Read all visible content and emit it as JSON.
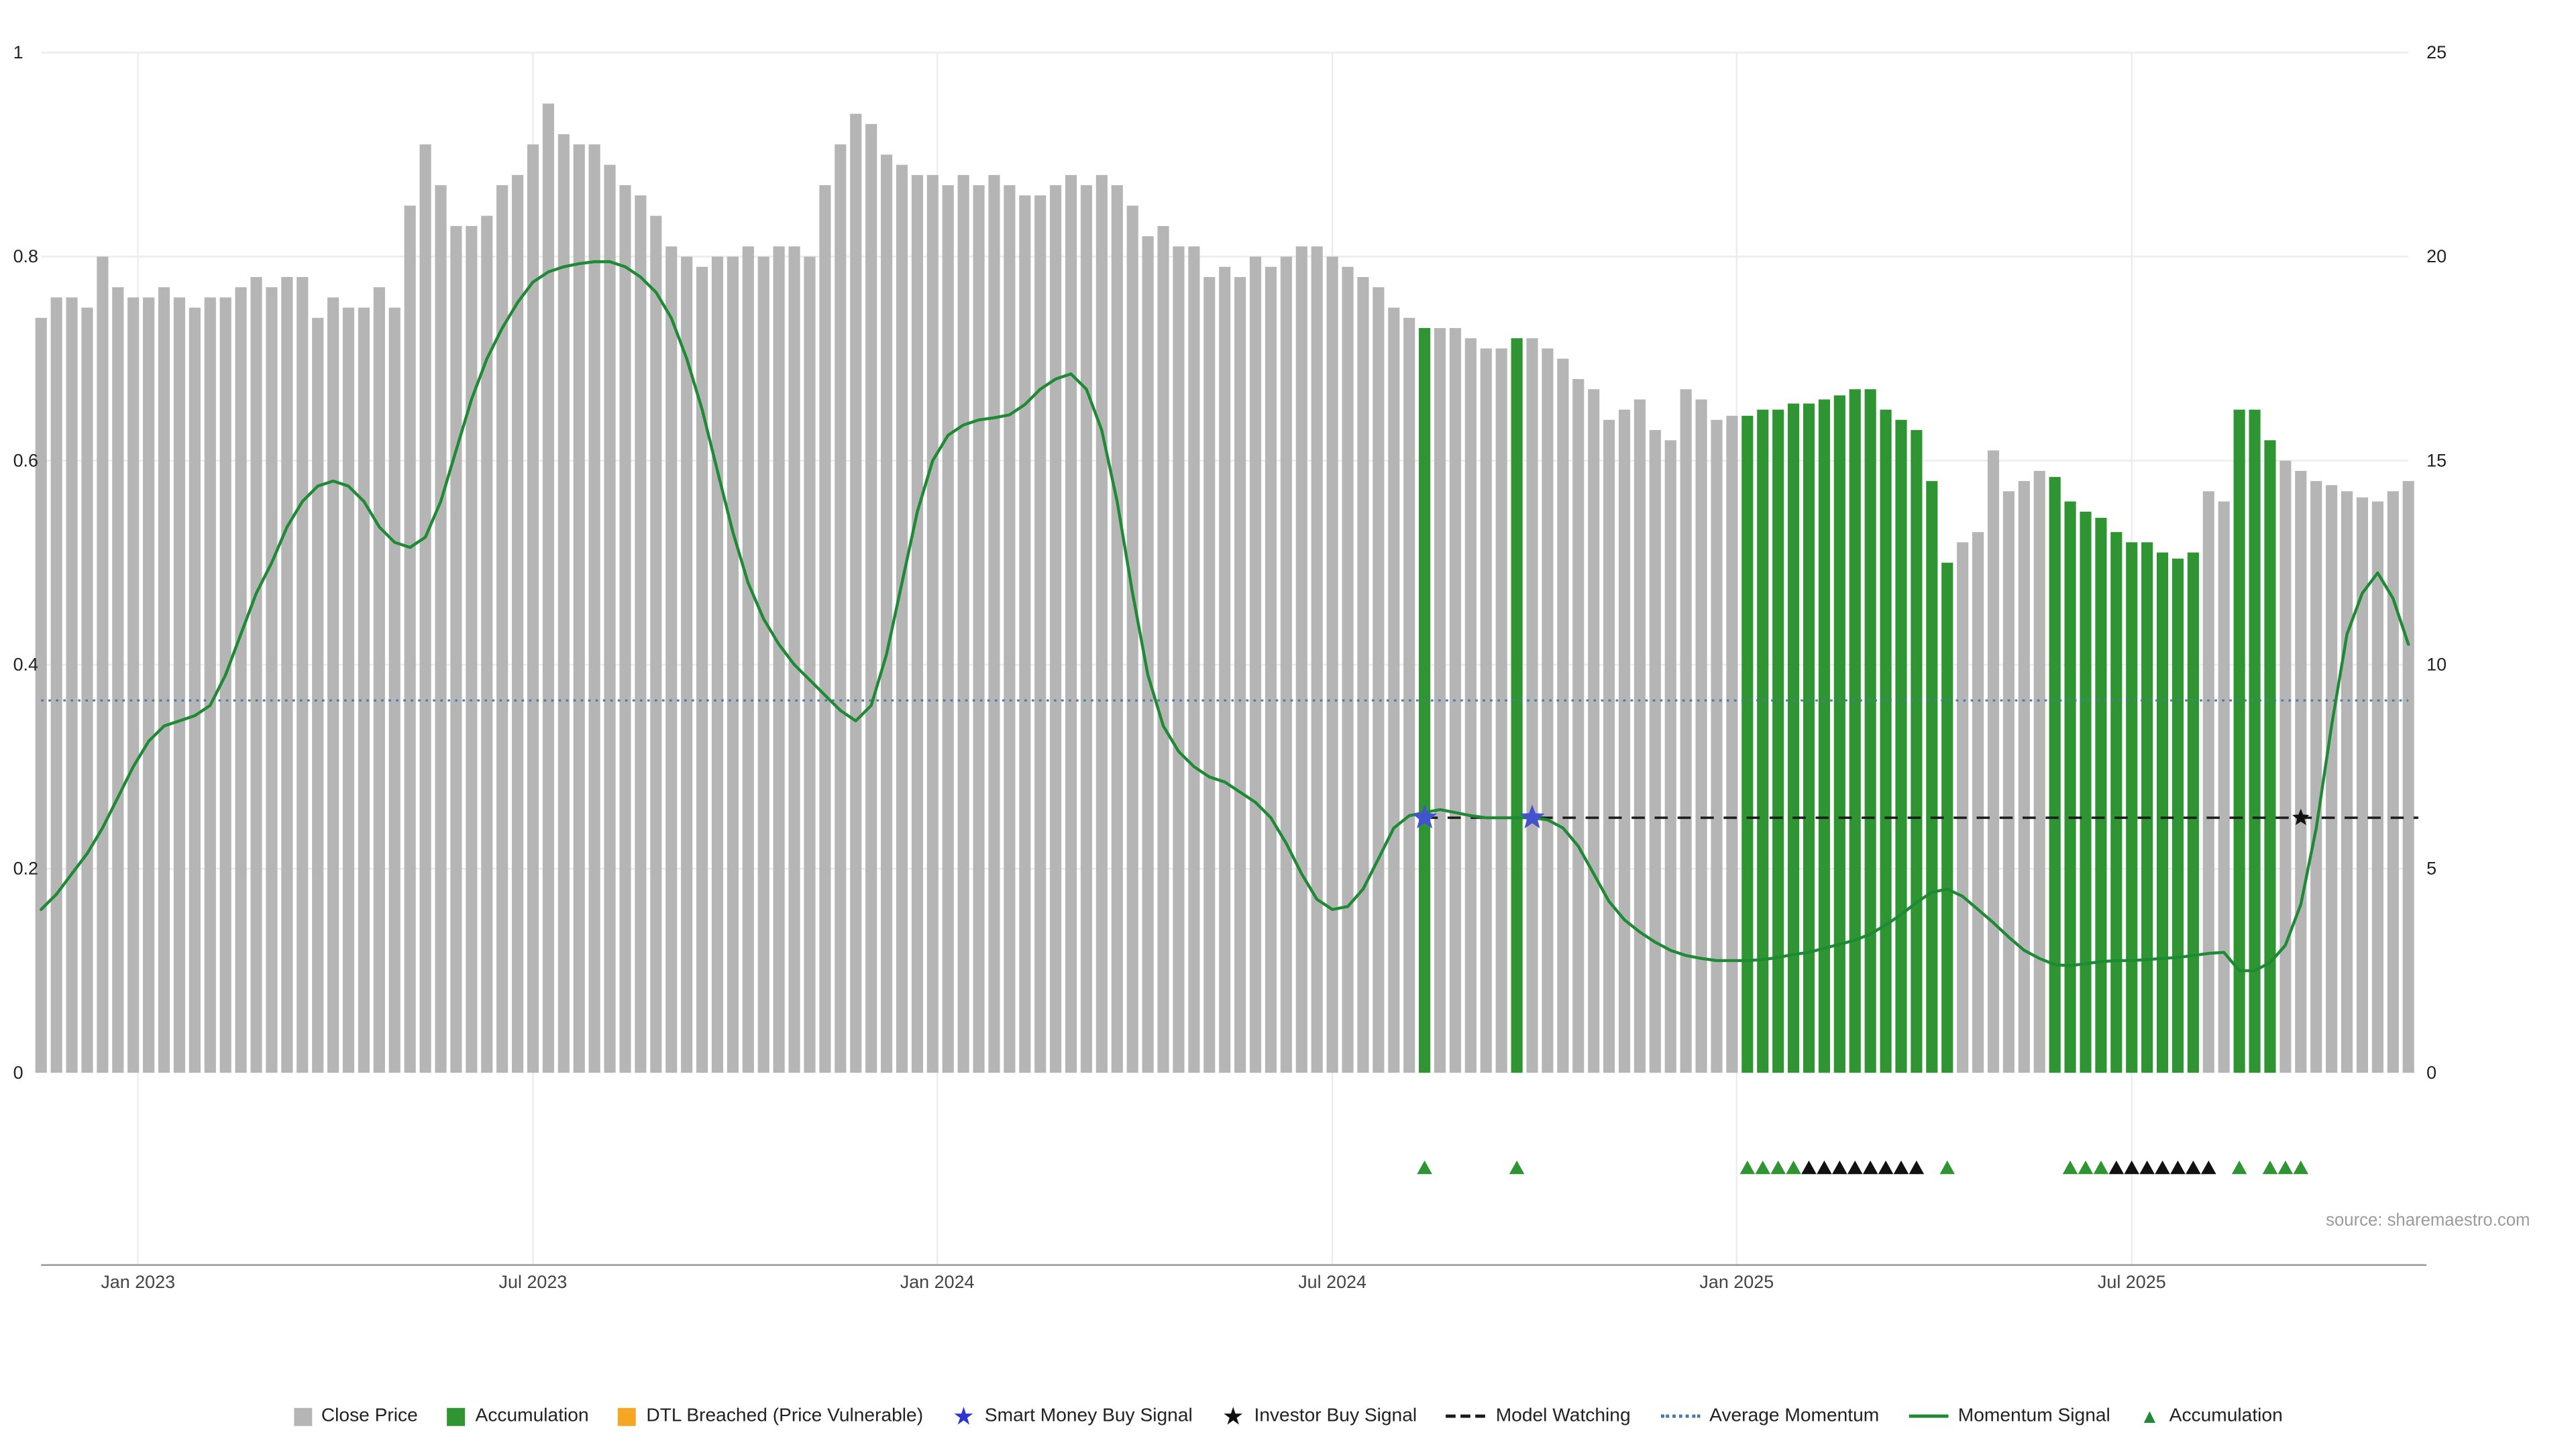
{
  "source_note": "source: sharemaestro.com",
  "colors": {
    "close_bar": "#b5b5b5",
    "accumulation_bar": "#2e9532",
    "dtl_breached": "#f5a623",
    "momentum_line": "#1e8a34",
    "average_momentum_line": "#4878a8",
    "model_watching_line": "#1a1a1a",
    "smart_money_star": "#4353d0",
    "investor_star": "#111111",
    "grid": "#ececec",
    "axis_line": "#999999"
  },
  "axes": {
    "left_ticks": [
      0,
      0.2,
      0.4,
      0.6,
      0.8,
      1
    ],
    "right_ticks": [
      0,
      5,
      10,
      15,
      20,
      25
    ],
    "x_ticks": [
      {
        "label": "Jan 2023",
        "week": 7.3
      },
      {
        "label": "Jul 2023",
        "week": 33.0
      },
      {
        "label": "Jan 2024",
        "week": 59.3
      },
      {
        "label": "Jul 2024",
        "week": 85.0
      },
      {
        "label": "Jan 2025",
        "week": 111.3
      },
      {
        "label": "Jul 2025",
        "week": 137.0
      }
    ]
  },
  "chart_data": {
    "type": "bar",
    "frequency": "weekly",
    "x_range": [
      "Nov 2022",
      "Nov 2025"
    ],
    "price_axis": "right",
    "price_axis_range": [
      0,
      25
    ],
    "momentum_axis": "left",
    "momentum_axis_range": [
      0,
      1
    ],
    "close": [
      18.5,
      19.0,
      19.0,
      18.75,
      20.0,
      19.25,
      19.0,
      19.0,
      19.25,
      19.0,
      18.75,
      19.0,
      19.0,
      19.25,
      19.5,
      19.25,
      19.5,
      19.5,
      18.5,
      19.0,
      18.75,
      18.75,
      19.25,
      18.75,
      21.25,
      22.75,
      21.75,
      20.75,
      20.75,
      21.0,
      21.75,
      22.0,
      22.75,
      23.75,
      23.0,
      22.75,
      22.75,
      22.25,
      21.75,
      21.5,
      21.0,
      20.25,
      20.0,
      19.75,
      20.0,
      20.0,
      20.25,
      20.0,
      20.25,
      20.25,
      20.0,
      21.75,
      22.75,
      23.5,
      23.25,
      22.5,
      22.25,
      22.0,
      22.0,
      21.75,
      22.0,
      21.75,
      22.0,
      21.75,
      21.5,
      21.5,
      21.75,
      22.0,
      21.75,
      22.0,
      21.75,
      21.25,
      20.5,
      20.75,
      20.25,
      20.25,
      19.5,
      19.75,
      19.5,
      20.0,
      19.75,
      20.0,
      20.25,
      20.25,
      20.0,
      19.75,
      19.5,
      19.25,
      18.75,
      18.5,
      18.25,
      18.25,
      18.25,
      18.0,
      17.75,
      17.75,
      18.0,
      18.0,
      17.75,
      17.5,
      17.0,
      16.75,
      16.0,
      16.25,
      16.5,
      15.75,
      15.5,
      16.75,
      16.5,
      16.0,
      16.1,
      16.1,
      16.25,
      16.25,
      16.4,
      16.4,
      16.5,
      16.6,
      16.75,
      16.75,
      16.25,
      16.0,
      15.75,
      14.5,
      12.5,
      13.0,
      13.25,
      15.25,
      14.25,
      14.5,
      14.75,
      14.6,
      14.0,
      13.75,
      13.6,
      13.25,
      13.0,
      13.0,
      12.75,
      12.6,
      12.75,
      14.25,
      14.0,
      16.25,
      16.25,
      15.5,
      15.0,
      14.75,
      14.5,
      14.4,
      14.25,
      14.1,
      14.0,
      14.25,
      14.5
    ],
    "momentum": [
      0.16,
      0.175,
      0.195,
      0.215,
      0.24,
      0.27,
      0.3,
      0.325,
      0.34,
      0.345,
      0.35,
      0.36,
      0.39,
      0.43,
      0.47,
      0.5,
      0.535,
      0.56,
      0.575,
      0.58,
      0.575,
      0.56,
      0.535,
      0.52,
      0.515,
      0.525,
      0.56,
      0.61,
      0.66,
      0.7,
      0.73,
      0.755,
      0.775,
      0.785,
      0.79,
      0.793,
      0.795,
      0.795,
      0.79,
      0.78,
      0.765,
      0.74,
      0.7,
      0.65,
      0.59,
      0.53,
      0.48,
      0.445,
      0.42,
      0.4,
      0.385,
      0.37,
      0.355,
      0.345,
      0.36,
      0.41,
      0.48,
      0.55,
      0.6,
      0.625,
      0.635,
      0.64,
      0.642,
      0.645,
      0.655,
      0.67,
      0.68,
      0.685,
      0.67,
      0.63,
      0.56,
      0.47,
      0.39,
      0.34,
      0.315,
      0.3,
      0.29,
      0.285,
      0.275,
      0.265,
      0.25,
      0.225,
      0.195,
      0.17,
      0.16,
      0.163,
      0.18,
      0.21,
      0.24,
      0.252,
      0.255,
      0.258,
      0.255,
      0.252,
      0.25,
      0.25,
      0.25,
      0.25,
      0.248,
      0.24,
      0.222,
      0.195,
      0.168,
      0.15,
      0.138,
      0.128,
      0.12,
      0.115,
      0.112,
      0.11,
      0.11,
      0.11,
      0.111,
      0.113,
      0.116,
      0.118,
      0.122,
      0.126,
      0.13,
      0.136,
      0.145,
      0.155,
      0.167,
      0.177,
      0.18,
      0.173,
      0.16,
      0.147,
      0.133,
      0.12,
      0.112,
      0.106,
      0.105,
      0.107,
      0.109,
      0.11,
      0.11,
      0.111,
      0.112,
      0.113,
      0.115,
      0.117,
      0.118,
      0.1,
      0.1,
      0.108,
      0.125,
      0.165,
      0.24,
      0.34,
      0.43,
      0.47,
      0.49,
      0.465,
      0.42
    ],
    "accumulation_week_ranges": [
      [
        91,
        91
      ],
      [
        97,
        97
      ],
      [
        112,
        125
      ],
      [
        132,
        141
      ],
      [
        144,
        146
      ]
    ],
    "average_momentum_level": 0.365,
    "model_watching": {
      "level": 0.25,
      "from_week": 91,
      "to_week": 155
    },
    "smart_money_buy_weeks": [
      91,
      98
    ],
    "investor_buy_weeks": [
      148
    ],
    "accumulation_marker_weeks": [
      91,
      97,
      112,
      113,
      114,
      115,
      125,
      133,
      134,
      135,
      144,
      146,
      147,
      148
    ],
    "investor_marker_weeks": [
      116,
      117,
      118,
      119,
      120,
      121,
      122,
      123,
      136,
      137,
      138,
      139,
      140,
      141,
      142
    ],
    "title": "",
    "xlabel": "",
    "ylabel_left": "",
    "ylabel_right": ""
  },
  "legend": {
    "items": [
      {
        "label": "Close Price",
        "swatch": "square",
        "color": "#b5b5b5"
      },
      {
        "label": "Accumulation",
        "swatch": "square",
        "color": "#2e9532"
      },
      {
        "label": "DTL Breached (Price Vulnerable)",
        "swatch": "square",
        "color": "#f5a623"
      },
      {
        "label": "Smart Money Buy Signal",
        "swatch": "star",
        "color": "#2b35d6"
      },
      {
        "label": "Investor Buy Signal",
        "swatch": "star",
        "color": "#111111"
      },
      {
        "label": "Model Watching",
        "swatch": "dashed-line",
        "color": "#1a1a1a"
      },
      {
        "label": "Average Momentum",
        "swatch": "dotted-line",
        "color": "#4878a8"
      },
      {
        "label": "Momentum Signal",
        "swatch": "line",
        "color": "#1e8a34"
      },
      {
        "label": "Accumulation",
        "swatch": "triangle",
        "color": "#1e8a34"
      }
    ]
  }
}
